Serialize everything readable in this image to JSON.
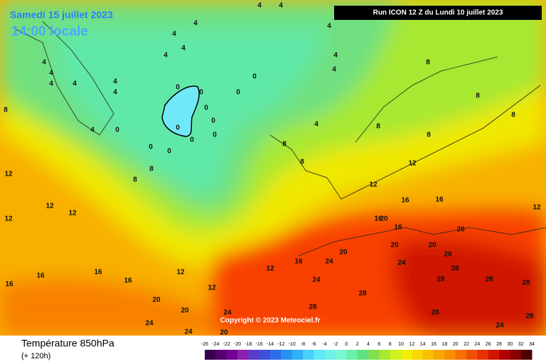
{
  "header": {
    "title": "Samedi 15 juillet 2023",
    "subtitle": "14:00 locale",
    "run": "Run ICON 12 Z du Lundi 10 juillet 2023",
    "copyright": "Copyright © 2023 Meteociel.fr"
  },
  "legend": {
    "title": "Température 850hPa",
    "subtitle": "(+ 120h)",
    "ticks": [
      -26,
      -24,
      -22,
      -20,
      -18,
      -16,
      -14,
      -12,
      -10,
      -8,
      -6,
      -4,
      -2,
      0,
      2,
      4,
      6,
      8,
      10,
      12,
      14,
      16,
      18,
      20,
      22,
      24,
      26,
      28,
      30,
      32,
      34
    ],
    "colors": [
      "#3a0050",
      "#560070",
      "#720090",
      "#8e20b0",
      "#5a3cc8",
      "#3c50d8",
      "#2c6ee8",
      "#2890f0",
      "#30b0f8",
      "#48d0f8",
      "#60e8f8",
      "#70f0e8",
      "#78f8d0",
      "#68f0a8",
      "#60e080",
      "#80e050",
      "#a8e830",
      "#d0f020",
      "#f0f000",
      "#f8d800",
      "#f8c000",
      "#f8a800",
      "#f89000",
      "#f87000",
      "#f05000",
      "#e83000",
      "#d01800",
      "#b00000",
      "#880000",
      "#500000"
    ]
  },
  "contour_labels": [
    4,
    4,
    4,
    4,
    4,
    4,
    4,
    4,
    4,
    4,
    4,
    4,
    4,
    4,
    4,
    4,
    4,
    8,
    8,
    8,
    8,
    8,
    0,
    0,
    0,
    0,
    0,
    0,
    0,
    0,
    0,
    0,
    0,
    0,
    8,
    8,
    8,
    8,
    8,
    12,
    12,
    12,
    12,
    12,
    12,
    12,
    12,
    12,
    12,
    16,
    16,
    16,
    16,
    16,
    16,
    16,
    16,
    16,
    20,
    20,
    20,
    20,
    20,
    20,
    20,
    20,
    24,
    24,
    24,
    24,
    24,
    24,
    24,
    28,
    28,
    28,
    28,
    28,
    28,
    28,
    28,
    28
  ]
}
